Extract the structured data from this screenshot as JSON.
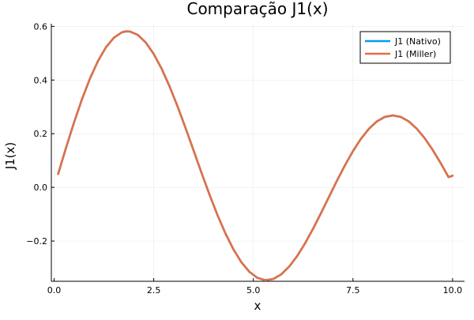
{
  "chart_data": {
    "type": "line",
    "title": "Comparação J1(x)",
    "xlabel": "x",
    "ylabel": "J1(x)",
    "xlim": [
      -0.07,
      10.3
    ],
    "ylim": [
      -0.35,
      0.61
    ],
    "grid": true,
    "legend_position": "top-right",
    "x_ticks": [
      {
        "value": 0,
        "label": "0.0"
      },
      {
        "value": 2.5,
        "label": "2.5"
      },
      {
        "value": 5,
        "label": "5.0"
      },
      {
        "value": 7.5,
        "label": "7.5"
      },
      {
        "value": 10,
        "label": "10.0"
      }
    ],
    "y_ticks": [
      {
        "value": -0.2,
        "label": "−0.2"
      },
      {
        "value": 0.0,
        "label": "0.0"
      },
      {
        "value": 0.2,
        "label": "0.2"
      },
      {
        "value": 0.4,
        "label": "0.4"
      },
      {
        "value": 0.6,
        "label": "0.6"
      }
    ],
    "x": [
      0.1,
      0.3,
      0.5,
      0.7,
      0.9,
      1.1,
      1.3,
      1.5,
      1.7,
      1.8,
      1.9,
      2.1,
      2.3,
      2.5,
      2.7,
      2.9,
      3.1,
      3.3,
      3.5,
      3.7,
      3.9,
      4.1,
      4.3,
      4.5,
      4.7,
      4.9,
      5.1,
      5.3,
      5.5,
      5.7,
      5.9,
      6.1,
      6.3,
      6.5,
      6.7,
      6.9,
      7.1,
      7.3,
      7.5,
      7.7,
      7.9,
      8.1,
      8.3,
      8.5,
      8.7,
      8.9,
      9.1,
      9.3,
      9.5,
      9.7,
      9.9,
      10.0
    ],
    "series": [
      {
        "name": "J1 (Nativo)",
        "color": "#009af9",
        "values": [
          0.0499,
          0.1483,
          0.2423,
          0.329,
          0.4059,
          0.4709,
          0.522,
          0.5579,
          0.5778,
          0.5815,
          0.5812,
          0.5683,
          0.5399,
          0.4971,
          0.4416,
          0.3754,
          0.3009,
          0.2207,
          0.1374,
          0.0538,
          -0.0272,
          -0.1033,
          -0.1719,
          -0.2311,
          -0.2791,
          -0.3147,
          -0.3371,
          -0.3459,
          -0.3414,
          -0.3241,
          -0.2951,
          -0.2559,
          -0.2081,
          -0.1538,
          -0.0953,
          -0.0349,
          0.0252,
          0.0826,
          0.1352,
          0.181,
          0.2183,
          0.2459,
          0.2627,
          0.2683,
          0.2626,
          0.2459,
          0.219,
          0.1832,
          0.1399,
          0.0909,
          0.0381,
          0.0435
        ]
      },
      {
        "name": "J1 (Miller)",
        "color": "#e26f46",
        "values": [
          0.0499,
          0.1483,
          0.2423,
          0.329,
          0.4059,
          0.4709,
          0.522,
          0.5579,
          0.5778,
          0.5815,
          0.5812,
          0.5683,
          0.5399,
          0.4971,
          0.4416,
          0.3754,
          0.3009,
          0.2207,
          0.1374,
          0.0538,
          -0.0272,
          -0.1033,
          -0.1719,
          -0.2311,
          -0.2791,
          -0.3147,
          -0.3371,
          -0.3459,
          -0.3414,
          -0.3241,
          -0.2951,
          -0.2559,
          -0.2081,
          -0.1538,
          -0.0953,
          -0.0349,
          0.0252,
          0.0826,
          0.1352,
          0.181,
          0.2183,
          0.2459,
          0.2627,
          0.2683,
          0.2626,
          0.2459,
          0.219,
          0.1832,
          0.1399,
          0.0909,
          0.0381,
          0.0435
        ]
      }
    ]
  }
}
